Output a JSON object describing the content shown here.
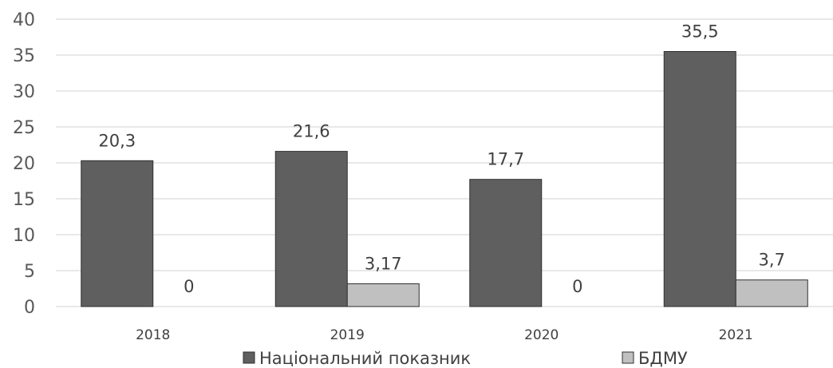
{
  "chart_data": {
    "type": "bar",
    "categories": [
      "2018",
      "2019",
      "2020",
      "2021"
    ],
    "series": [
      {
        "name": "Національний показник",
        "values": [
          20.3,
          21.6,
          17.7,
          35.5
        ],
        "labels": [
          "20,3",
          "21,6",
          "17,7",
          "35,5"
        ],
        "color": "#5f5f5f"
      },
      {
        "name": "БДМУ",
        "values": [
          0,
          3.17,
          0,
          3.7
        ],
        "labels": [
          "0",
          "3,17",
          "0",
          "3,7"
        ],
        "color": "#c0c0c0"
      }
    ],
    "yticks": [
      "0",
      "5",
      "10",
      "15",
      "20",
      "25",
      "30",
      "35",
      "40"
    ],
    "ylim": [
      0,
      40
    ],
    "grid": true,
    "legend": "bottom",
    "title": "",
    "xlabel": "",
    "ylabel": ""
  }
}
